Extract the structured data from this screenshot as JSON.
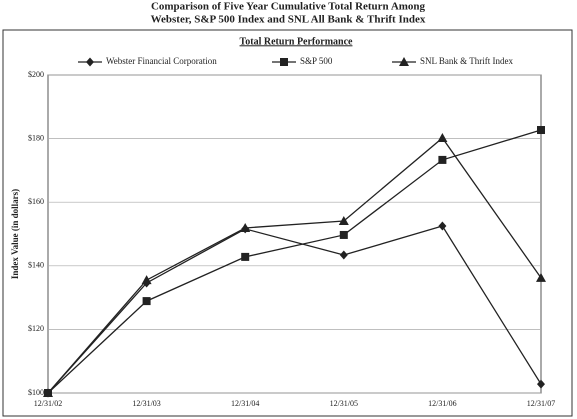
{
  "chart_data": {
    "type": "line",
    "title": "Comparison of Five Year Cumulative Total Return Among",
    "subtitle": "Webster, S&P 500 Index and SNL All Bank & Thrift Index",
    "chart_title": "Total Return Performance",
    "y_label": "Index Value (in dollars)",
    "categories": [
      "12/31/02",
      "12/31/03",
      "12/31/04",
      "12/31/05",
      "12/31/06",
      "12/31/07"
    ],
    "series": [
      {
        "name": "Webster Financial Corporation",
        "color": "#222222",
        "marker": "diamond",
        "values": [
          100,
          134.6,
          151.6,
          143.4,
          152.5,
          102.8
        ]
      },
      {
        "name": "S&P 500",
        "color": "#222222",
        "marker": "square",
        "values": [
          100,
          128.9,
          142.8,
          149.7,
          173.3,
          182.7
        ]
      },
      {
        "name": "SNL Bank & Thrift Index",
        "color": "#222222",
        "marker": "triangle",
        "values": [
          100,
          135.5,
          151.9,
          154.1,
          180.2,
          136.2
        ]
      }
    ],
    "ylim": [
      100,
      200
    ],
    "yticks": [
      {
        "value": 100,
        "label": "$100"
      },
      {
        "value": 120,
        "label": "$120"
      },
      {
        "value": 140,
        "label": "$140"
      },
      {
        "value": 160,
        "label": "$160"
      },
      {
        "value": 180,
        "label": "$180"
      },
      {
        "value": 200,
        "label": "$200"
      }
    ],
    "grid": true
  }
}
